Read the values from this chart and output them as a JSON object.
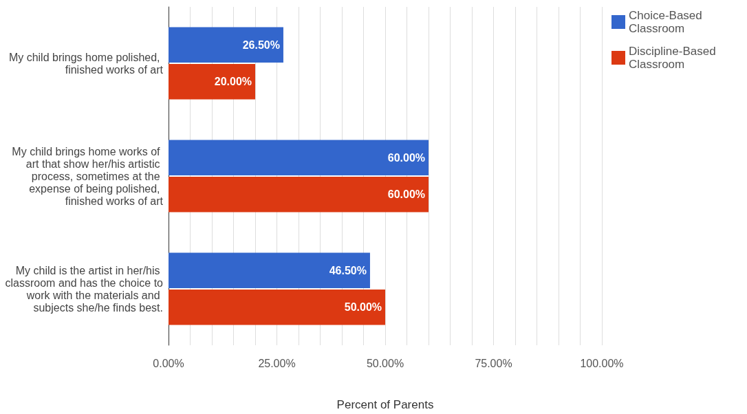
{
  "chart_data": {
    "type": "bar",
    "orientation": "horizontal",
    "xlabel": "Percent of Parents",
    "categories": [
      "My child brings home polished, finished works of art",
      "My child brings home works of art that show her/his artistic process, sometimes at the expense of being polished, finished works of art",
      "My child is the artist in her/his classroom and has the choice to work with the materials and subjects she/he finds best."
    ],
    "series": [
      {
        "name": "Choice-Based Classroom",
        "color": "#3366cc",
        "values": [
          26.5,
          60,
          46.5
        ],
        "value_labels": [
          "26.50%",
          "60.00%",
          "46.50%"
        ]
      },
      {
        "name": "Discipline-Based Classroom",
        "color": "#dc3912",
        "values": [
          20,
          60,
          50
        ],
        "value_labels": [
          "20.00%",
          "60.00%",
          "50.00%"
        ]
      }
    ],
    "xlim": [
      0,
      100
    ],
    "xticks": [
      {
        "value": 0,
        "label": "0.00%"
      },
      {
        "value": 5,
        "label": null
      },
      {
        "value": 10,
        "label": null
      },
      {
        "value": 15,
        "label": null
      },
      {
        "value": 20,
        "label": null
      },
      {
        "value": 25,
        "label": "25.00%"
      },
      {
        "value": 30,
        "label": null
      },
      {
        "value": 35,
        "label": null
      },
      {
        "value": 40,
        "label": null
      },
      {
        "value": 45,
        "label": null
      },
      {
        "value": 50,
        "label": "50.00%"
      },
      {
        "value": 55,
        "label": null
      },
      {
        "value": 60,
        "label": null
      },
      {
        "value": 65,
        "label": null
      },
      {
        "value": 70,
        "label": null
      },
      {
        "value": 75,
        "label": "75.00%"
      },
      {
        "value": 80,
        "label": null
      },
      {
        "value": 85,
        "label": null
      },
      {
        "value": 90,
        "label": null
      },
      {
        "value": 95,
        "label": null
      },
      {
        "value": 100,
        "label": "100.00%"
      }
    ],
    "grid": "x",
    "legend": "top right"
  }
}
